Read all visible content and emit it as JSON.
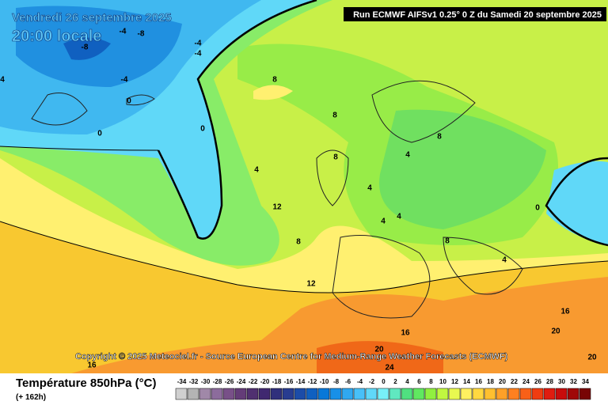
{
  "header": {
    "date": "Vendredi 26 septembre 2025",
    "time": "20:00 locale",
    "run": "Run ECMWF AIFSv1 0.25° 0 Z du Samedi 20 septembre 2025"
  },
  "copyright": "Copyright © 2025 Meteociel.fr - Source European Centre for Medium-Range Weather Forecasts (ECMWF)",
  "footer": {
    "title": "Température 850hPa (°C)",
    "lead": "(+ 162h)"
  },
  "legend": {
    "labels": [
      -34,
      -32,
      -30,
      -28,
      -26,
      -24,
      -22,
      -20,
      -18,
      -16,
      -14,
      -12,
      -10,
      -8,
      -6,
      -4,
      -2,
      0,
      2,
      4,
      6,
      8,
      10,
      12,
      14,
      16,
      18,
      20,
      22,
      24,
      26,
      28,
      30,
      32,
      34
    ],
    "colors": [
      "#d0d0d0",
      "#b4b4b4",
      "#a088a8",
      "#8c6c9c",
      "#785088",
      "#643c78",
      "#503070",
      "#402870",
      "#30307c",
      "#283c90",
      "#1c4ca8",
      "#1060c0",
      "#0878d8",
      "#1890e8",
      "#30a8f0",
      "#48c0f8",
      "#60d8f8",
      "#78f0f8",
      "#60e8c0",
      "#50e080",
      "#60e860",
      "#90f040",
      "#c0f840",
      "#e8f850",
      "#fff060",
      "#ffd840",
      "#ffc030",
      "#ffa028",
      "#ff8020",
      "#f86018",
      "#f03c10",
      "#e01c10",
      "#c80c0c",
      "#a00808",
      "#780404"
    ]
  },
  "map": {
    "contour_labels": [
      -8,
      -4,
      -8,
      -4,
      -4,
      -4,
      0,
      0,
      0,
      4,
      8,
      8,
      8,
      4,
      8,
      4,
      4,
      4,
      12,
      8,
      8,
      4,
      0,
      12,
      16,
      16,
      20,
      20,
      24,
      20,
      16,
      4
    ]
  }
}
